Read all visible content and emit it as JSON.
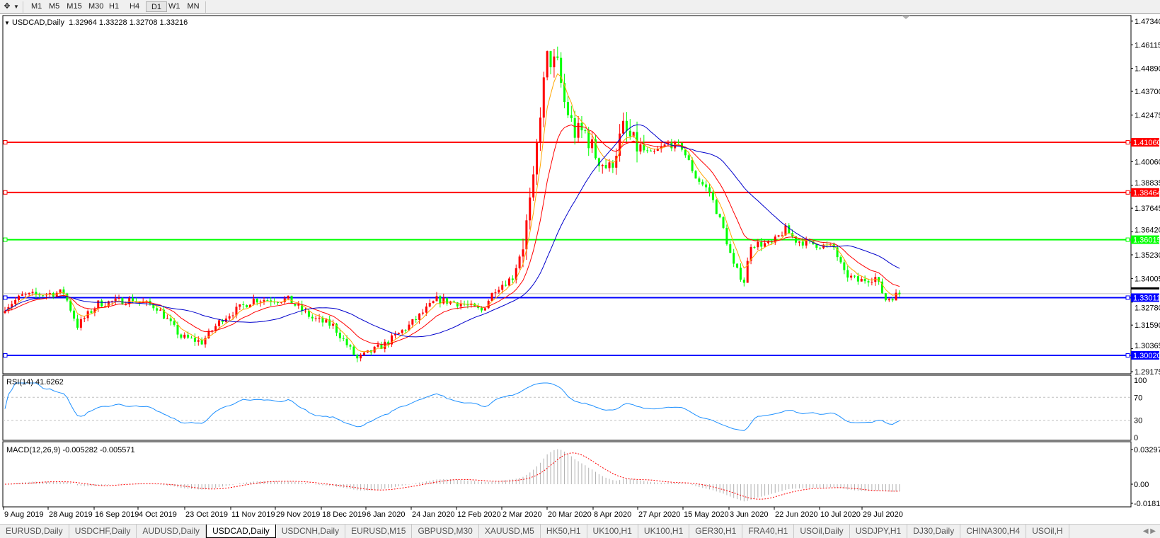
{
  "toolbar": {
    "timeframes": [
      "M1",
      "M5",
      "M15",
      "M30",
      "H1",
      "H4",
      "D1",
      "W1",
      "MN"
    ],
    "active_timeframe": "D1"
  },
  "chart": {
    "title": "USDCAD,Daily",
    "ohlc": "1.32964 1.33228 1.32708 1.33216",
    "price_axis": [
      "1.47340",
      "1.46115",
      "1.44890",
      "1.43700",
      "1.42475",
      "1.40060",
      "1.38835",
      "1.37645",
      "1.36420",
      "1.35230",
      "1.34005",
      "1.32780",
      "1.31590",
      "1.30365",
      "1.29175"
    ],
    "current_price": "1.33216",
    "levels": [
      {
        "price": "1.41060",
        "color": "#ff0000"
      },
      {
        "price": "1.38464",
        "color": "#ff0000"
      },
      {
        "price": "1.36015",
        "color": "#00ff00"
      },
      {
        "price": "1.33011",
        "color": "#0000ff"
      },
      {
        "price": "1.30020",
        "color": "#0000ff"
      }
    ],
    "date_axis": [
      "9 Aug 2019",
      "28 Aug 2019",
      "16 Sep 2019",
      "4 Oct 2019",
      "23 Oct 2019",
      "11 Nov 2019",
      "29 Nov 2019",
      "18 Dec 2019",
      "6 Jan 2020",
      "24 Jan 2020",
      "12 Feb 2020",
      "2 Mar 2020",
      "20 Mar 2020",
      "8 Apr 2020",
      "27 Apr 2020",
      "15 May 2020",
      "3 Jun 2020",
      "22 Jun 2020",
      "10 Jul 2020",
      "29 Jul 2020"
    ],
    "bull_color": "#ff0000",
    "bear_color": "#00ff00",
    "ma_colors": [
      "#ffa500",
      "#ff0000",
      "#0000cc"
    ]
  },
  "rsi": {
    "label": "RSI(14) 41.6262",
    "axis": [
      "100",
      "70",
      "30",
      "0"
    ],
    "color": "#1e90ff"
  },
  "macd": {
    "label": "MACD(12,26,9) -0.005282 -0.005571",
    "axis": [
      "0.032972",
      "0.00",
      "-0.018154"
    ]
  },
  "chart_data": {
    "type": "candlestick",
    "symbol": "USDCAD",
    "timeframe": "Daily",
    "ylim": [
      1.29175,
      1.4734
    ],
    "close_path": [
      {
        "bar": 0,
        "close": 1.3252
      },
      {
        "bar": 5,
        "close": 1.331
      },
      {
        "bar": 17,
        "close": 1.3329
      },
      {
        "bar": 21,
        "close": 1.3156
      },
      {
        "bar": 27,
        "close": 1.3271
      },
      {
        "bar": 37,
        "close": 1.3291
      },
      {
        "bar": 44,
        "close": 1.3252
      },
      {
        "bar": 51,
        "close": 1.3098
      },
      {
        "bar": 57,
        "close": 1.3071
      },
      {
        "bar": 63,
        "close": 1.3194
      },
      {
        "bar": 72,
        "close": 1.3291
      },
      {
        "bar": 82,
        "close": 1.3291
      },
      {
        "bar": 89,
        "close": 1.3194
      },
      {
        "bar": 95,
        "close": 1.3156
      },
      {
        "bar": 102,
        "close": 1.2983
      },
      {
        "bar": 106,
        "close": 1.3021
      },
      {
        "bar": 110,
        "close": 1.306
      },
      {
        "bar": 117,
        "close": 1.3156
      },
      {
        "bar": 125,
        "close": 1.3291
      },
      {
        "bar": 132,
        "close": 1.3271
      },
      {
        "bar": 138,
        "close": 1.3233
      },
      {
        "bar": 142,
        "close": 1.3348
      },
      {
        "bar": 147,
        "close": 1.3406
      },
      {
        "bar": 150,
        "close": 1.3579
      },
      {
        "bar": 153,
        "close": 1.3887
      },
      {
        "bar": 155,
        "close": 1.4272
      },
      {
        "bar": 157,
        "close": 1.4542
      },
      {
        "bar": 160,
        "close": 1.4503
      },
      {
        "bar": 162,
        "close": 1.4311
      },
      {
        "bar": 165,
        "close": 1.4157
      },
      {
        "bar": 168,
        "close": 1.4157
      },
      {
        "bar": 171,
        "close": 1.4041
      },
      {
        "bar": 175,
        "close": 1.3964
      },
      {
        "bar": 179,
        "close": 1.4176
      },
      {
        "bar": 183,
        "close": 1.408
      },
      {
        "bar": 187,
        "close": 1.4041
      },
      {
        "bar": 192,
        "close": 1.4099
      },
      {
        "bar": 196,
        "close": 1.408
      },
      {
        "bar": 200,
        "close": 1.3926
      },
      {
        "bar": 204,
        "close": 1.3849
      },
      {
        "bar": 208,
        "close": 1.3656
      },
      {
        "bar": 211,
        "close": 1.3464
      },
      {
        "bar": 214,
        "close": 1.3387
      },
      {
        "bar": 216,
        "close": 1.3579
      },
      {
        "bar": 222,
        "close": 1.3579
      },
      {
        "bar": 226,
        "close": 1.3656
      },
      {
        "bar": 229,
        "close": 1.3598
      },
      {
        "bar": 234,
        "close": 1.3579
      },
      {
        "bar": 240,
        "close": 1.356
      },
      {
        "bar": 243,
        "close": 1.3425
      },
      {
        "bar": 247,
        "close": 1.3387
      },
      {
        "bar": 252,
        "close": 1.3406
      },
      {
        "bar": 255,
        "close": 1.3291
      },
      {
        "bar": 259,
        "close": 1.3322
      }
    ]
  },
  "tabs": [
    "EURUSD,Daily",
    "USDCHF,Daily",
    "AUDUSD,Daily",
    "USDCAD,Daily",
    "USDCNH,Daily",
    "EURUSD,M15",
    "GBPUSD,M30",
    "XAUUSD,M5",
    "HK50,H1",
    "UK100,H1",
    "UK100,H1",
    "GER30,H1",
    "FRA40,H1",
    "USOil,Daily",
    "USDJPY,H1",
    "DJ30,Daily",
    "CHINA300,H4",
    "USOil,H"
  ],
  "active_tab": "USDCAD,Daily"
}
